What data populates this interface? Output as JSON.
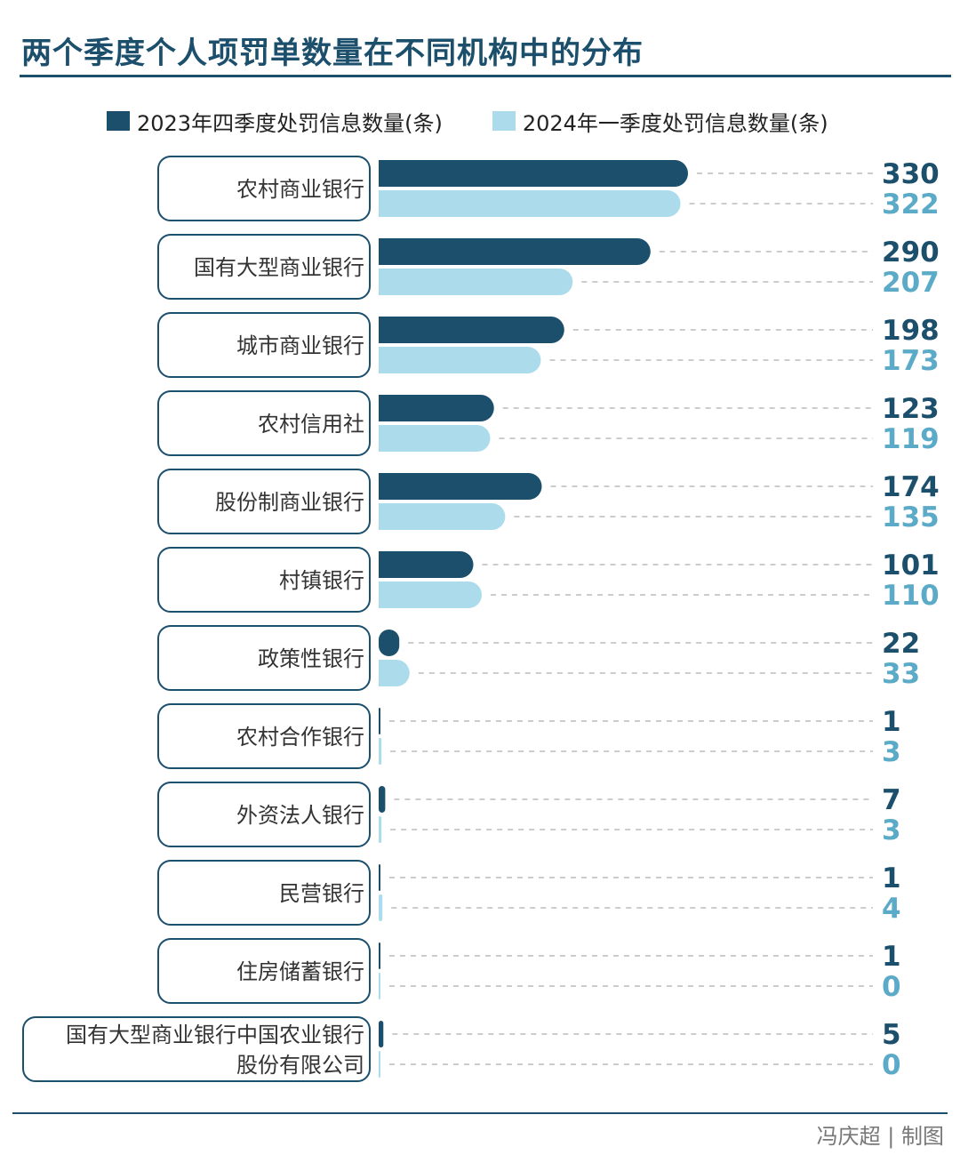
{
  "colors": {
    "dark": "#1b4f6c",
    "light": "#acdcec",
    "dark_text": "#1b4f6c",
    "light_text": "#5aaac8",
    "dash": "#bbbbbb",
    "box": "#1b4f6c"
  },
  "chart_data": {
    "type": "bar",
    "orientation": "horizontal",
    "title": "两个季度个人项罚单数量在不同机构中的分布",
    "categories": [
      "农村商业银行",
      "国有大型商业银行",
      "城市商业银行",
      "农村信用社",
      "股份制商业银行",
      "村镇银行",
      "政策性银行",
      "农村合作银行",
      "外资法人银行",
      "民营银行",
      "住房储蓄银行",
      "国有大型商业银行中国农业银行股份有限公司"
    ],
    "category_lines": [
      [
        "农村商业银行"
      ],
      [
        "国有大型商业银行"
      ],
      [
        "城市商业银行"
      ],
      [
        "农村信用社"
      ],
      [
        "股份制商业银行"
      ],
      [
        "村镇银行"
      ],
      [
        "政策性银行"
      ],
      [
        "农村合作银行"
      ],
      [
        "外资法人银行"
      ],
      [
        "民营银行"
      ],
      [
        "住房储蓄银行"
      ],
      [
        "国有大型商业银行中国农业银行",
        "股份有限公司"
      ]
    ],
    "series": [
      {
        "name": "2023年四季度处罚信息数量(条)",
        "values": [
          330,
          290,
          198,
          123,
          174,
          101,
          22,
          1,
          7,
          1,
          1,
          5
        ]
      },
      {
        "name": "2024年一季度处罚信息数量(条)",
        "values": [
          322,
          207,
          173,
          119,
          135,
          110,
          33,
          3,
          3,
          4,
          0,
          0
        ]
      }
    ],
    "xlim": [
      0,
      330
    ],
    "legend_position": "top",
    "grid": false
  },
  "credit": "冯庆超 | 制图"
}
